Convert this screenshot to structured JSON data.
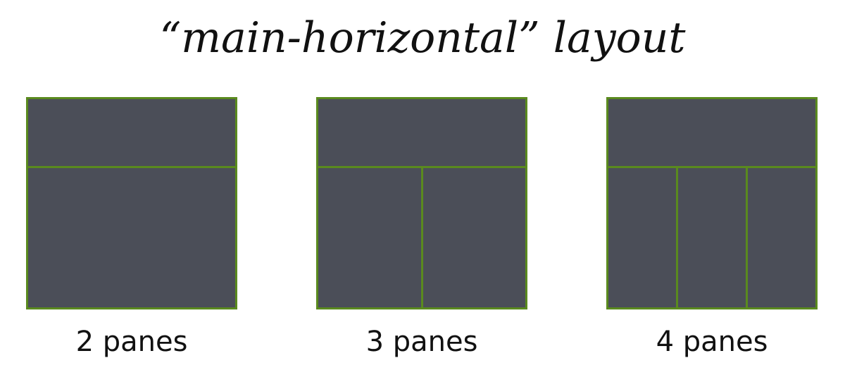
{
  "title": "“main-horizontal” layout",
  "diagrams": [
    {
      "label": "2 panes",
      "main_panes": 1,
      "bottom_panes": 1
    },
    {
      "label": "3 panes",
      "main_panes": 1,
      "bottom_panes": 2
    },
    {
      "label": "4 panes",
      "main_panes": 1,
      "bottom_panes": 3
    }
  ],
  "colors": {
    "pane_fill": "#4b4e58",
    "pane_border": "#5a8a1e",
    "text": "#111111",
    "background": "#ffffff"
  }
}
